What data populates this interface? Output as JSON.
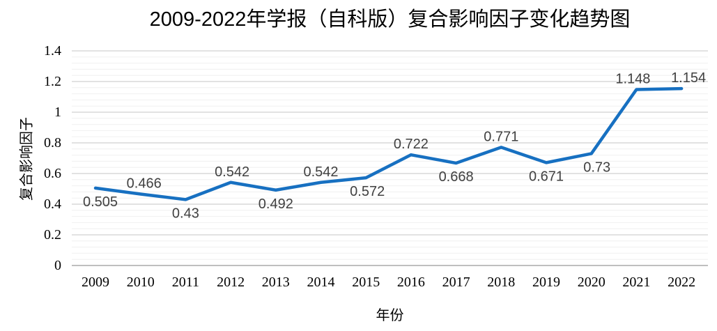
{
  "chart_data": {
    "type": "line",
    "title": "2009-2022年学报（自科版）复合影响因子变化趋势图",
    "xlabel": "年份",
    "ylabel": "复合影响因子",
    "categories": [
      "2009",
      "2010",
      "2011",
      "2012",
      "2013",
      "2014",
      "2015",
      "2016",
      "2017",
      "2018",
      "2019",
      "2020",
      "2021",
      "2022"
    ],
    "series": [
      {
        "name": "复合影响因子",
        "values": [
          0.505,
          0.466,
          0.43,
          0.542,
          0.492,
          0.542,
          0.572,
          0.722,
          0.668,
          0.771,
          0.671,
          0.73,
          1.148,
          1.154
        ],
        "data_labels": [
          "0.505",
          "0.466",
          "0.43",
          "0.542",
          "0.492",
          "0.542",
          "0.572",
          "0.722",
          "0.668",
          "0.771",
          "0.671",
          "0.73",
          "1.148",
          "1.154"
        ],
        "label_positions": [
          "below",
          "above",
          "below",
          "above",
          "below",
          "above",
          "below",
          "above",
          "below",
          "above",
          "below",
          "below",
          "above",
          "above"
        ],
        "label_dx": [
          7,
          5,
          0,
          2,
          0,
          0,
          2,
          0,
          0,
          0,
          0,
          8,
          -5,
          10
        ]
      }
    ],
    "ylim": [
      0,
      1.4
    ],
    "y_major_unit": 0.2,
    "y_minor_unit": 0.04,
    "y_tick_labels": [
      "0",
      "0.2",
      "0.4",
      "0.6",
      "0.8",
      "1",
      "1.2",
      "1.4"
    ],
    "grid": {
      "horizontal_major": true,
      "horizontal_minor": true,
      "vertical": false
    },
    "legend": "none",
    "colors": {
      "line": "#1770C1",
      "major_gridline": "#D9D9D9",
      "minor_gridline": "#F0F0F0",
      "axis_line": "#BFBFBF",
      "data_label": "#404040",
      "tick_label": "#000000",
      "title": "#000000"
    }
  }
}
